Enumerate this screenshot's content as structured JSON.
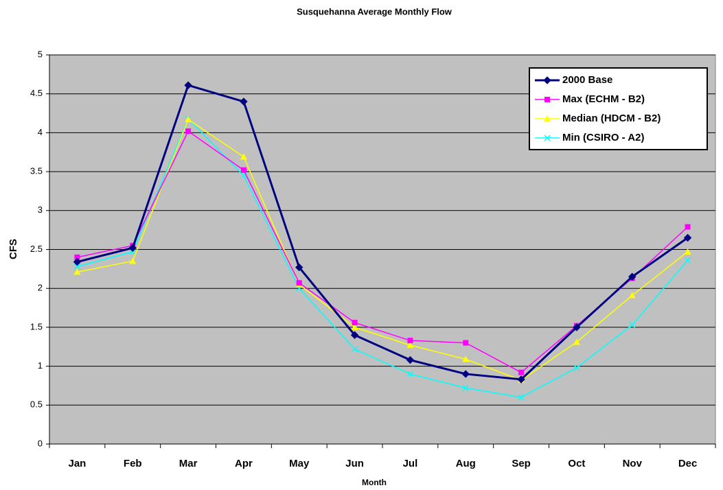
{
  "chart_data": {
    "type": "line",
    "title": "Susquehanna Average Monthly Flow",
    "x_label": "Month",
    "y_label": "CFS",
    "categories": [
      "Jan",
      "Feb",
      "Mar",
      "Apr",
      "May",
      "Jun",
      "Jul",
      "Aug",
      "Sep",
      "Oct",
      "Nov",
      "Dec"
    ],
    "series": [
      {
        "name": "2000 Base",
        "color": "#000080",
        "marker": "diamond",
        "values": [
          2.34,
          2.52,
          4.61,
          4.4,
          2.27,
          1.4,
          1.08,
          0.9,
          0.83,
          1.5,
          2.15,
          2.65
        ]
      },
      {
        "name": "Max (ECHM - B2)",
        "color": "#ff00ff",
        "marker": "square",
        "values": [
          2.4,
          2.55,
          4.02,
          3.52,
          2.07,
          1.56,
          1.33,
          1.3,
          0.92,
          1.52,
          2.13,
          2.79
        ]
      },
      {
        "name": "Median (HDCM - B2)",
        "color": "#ffff00",
        "marker": "triangle",
        "values": [
          2.21,
          2.35,
          4.17,
          3.69,
          2.05,
          1.5,
          1.27,
          1.09,
          0.82,
          1.31,
          1.91,
          2.47
        ]
      },
      {
        "name": "Min (CSIRO - A2)",
        "color": "#00ffff",
        "marker": "x",
        "values": [
          2.28,
          2.47,
          4.18,
          3.45,
          2.0,
          1.22,
          0.9,
          0.72,
          0.6,
          0.98,
          1.53,
          2.36
        ]
      }
    ],
    "ylim": [
      0,
      5
    ],
    "yticks": [
      0,
      0.5,
      1,
      1.5,
      2,
      2.5,
      3,
      3.5,
      4,
      4.5,
      5
    ],
    "grid": true,
    "legend": "upper right",
    "plot_background": "#c0c0c0"
  }
}
